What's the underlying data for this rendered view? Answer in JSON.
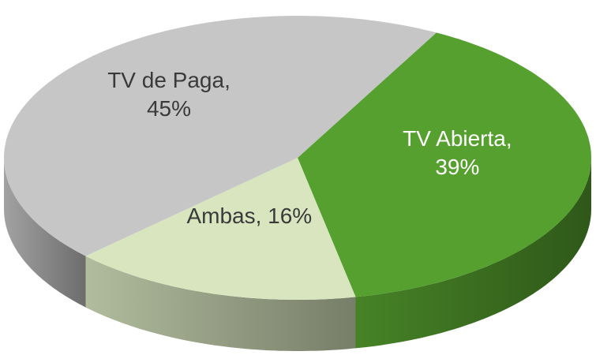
{
  "chart_data": {
    "type": "pie",
    "values": [
      39,
      16,
      45
    ],
    "value_labels": [
      "TV Abierta, 39%",
      "Ambas, 16%",
      "TV de Paga, 45%"
    ],
    "colors": [
      "#55a02e",
      "#d8e5bf",
      "#c6c6c6"
    ]
  }
}
